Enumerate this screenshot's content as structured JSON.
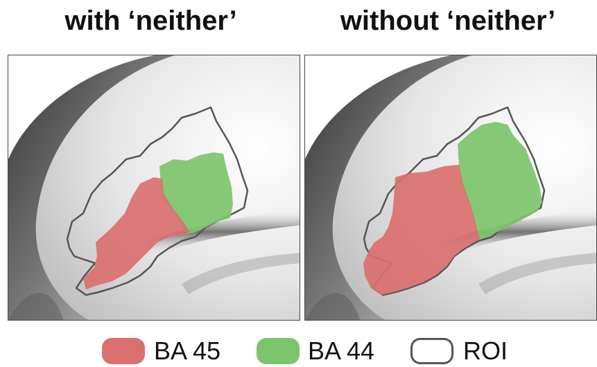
{
  "panels": {
    "left": {
      "title": "with ‘neither’"
    },
    "right": {
      "title": "without ‘neither’"
    }
  },
  "legend": [
    {
      "label": "BA 45",
      "color": "#d9706f"
    },
    {
      "label": "BA 44",
      "color": "#7cc46b"
    },
    {
      "label": "ROI",
      "color": "#555555"
    }
  ]
}
